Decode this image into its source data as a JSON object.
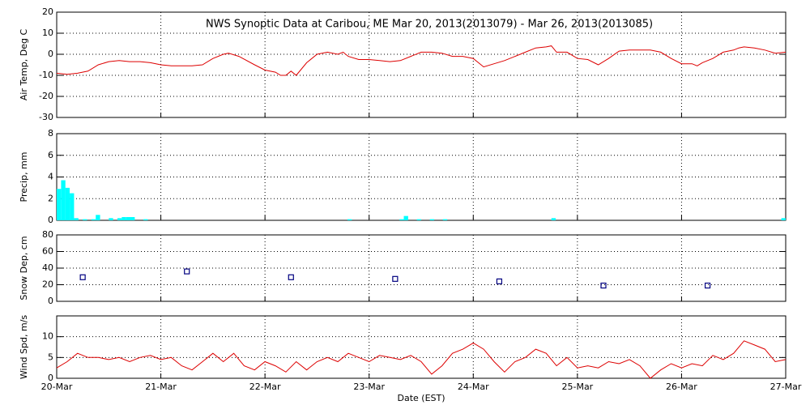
{
  "chart_data": [
    {
      "type": "line",
      "title": "NWS Synoptic Data at Caribou, ME   Mar 20, 2013(2013079) - Mar 26, 2013(2013085)",
      "y_label": "Air Temp, Deg C",
      "color": "#dd0000",
      "xlim": [
        0,
        7
      ],
      "ylim": [
        -30,
        20
      ],
      "yticks": [
        -30,
        -20,
        -10,
        0,
        10,
        20
      ],
      "grid": true,
      "x": [
        0,
        0.1,
        0.2,
        0.3,
        0.4,
        0.5,
        0.6,
        0.7,
        0.8,
        0.9,
        1.0,
        1.1,
        1.2,
        1.3,
        1.4,
        1.5,
        1.6,
        1.65,
        1.75,
        1.9,
        2.0,
        2.1,
        2.15,
        2.2,
        2.25,
        2.3,
        2.4,
        2.5,
        2.6,
        2.7,
        2.75,
        2.8,
        2.9,
        3.0,
        3.1,
        3.2,
        3.3,
        3.4,
        3.5,
        3.6,
        3.7,
        3.8,
        3.9,
        4.0,
        4.1,
        4.2,
        4.3,
        4.5,
        4.6,
        4.7,
        4.75,
        4.8,
        4.9,
        5.0,
        5.1,
        5.2,
        5.3,
        5.4,
        5.5,
        5.6,
        5.7,
        5.8,
        5.9,
        6.0,
        6.1,
        6.15,
        6.2,
        6.3,
        6.4,
        6.5,
        6.55,
        6.6,
        6.7,
        6.8,
        6.9,
        7.0
      ],
      "values": [
        -9,
        -9.5,
        -9,
        -8,
        -5,
        -3.5,
        -3,
        -3.5,
        -3.5,
        -4,
        -5,
        -5.5,
        -5.5,
        -5.5,
        -5,
        -2,
        0,
        0.5,
        -1,
        -5,
        -7.5,
        -8.5,
        -10,
        -10,
        -8,
        -10,
        -4,
        0,
        1,
        0,
        1,
        -1,
        -2.5,
        -2.5,
        -3,
        -3.5,
        -3,
        -1,
        1,
        1,
        0.5,
        -1,
        -1,
        -2,
        -6,
        -4.5,
        -3,
        1,
        3,
        3.5,
        4,
        1,
        1,
        -2,
        -2.5,
        -5,
        -2,
        1.5,
        2,
        2,
        2,
        1,
        -2,
        -4.5,
        -4.5,
        -5.5,
        -4,
        -2,
        1,
        2,
        3,
        3.5,
        3,
        2,
        0.5,
        1
      ]
    },
    {
      "type": "bar",
      "y_label": "Precip, mm",
      "color": "#00ffff",
      "xlim": [
        0,
        7
      ],
      "ylim": [
        0,
        8
      ],
      "yticks": [
        0,
        2,
        4,
        6,
        8
      ],
      "grid": true,
      "x": [
        0,
        0.042,
        0.083,
        0.125,
        0.167,
        0.25,
        0.333,
        0.375,
        0.5,
        0.583,
        0.625,
        0.667,
        0.708,
        0.833,
        2.792,
        3.292,
        3.333,
        3.458,
        3.583,
        3.708,
        4.75,
        6.958
      ],
      "values": [
        2.9,
        3.7,
        3.0,
        2.5,
        0.2,
        0.1,
        0.1,
        0.5,
        0.2,
        0.2,
        0.3,
        0.3,
        0.3,
        0.1,
        0.1,
        0.1,
        0.4,
        0.1,
        0.1,
        0.1,
        0.2,
        0.2
      ]
    },
    {
      "type": "scatter",
      "y_label": "Snow Dep, cm",
      "color": "#000080",
      "xlim": [
        0,
        7
      ],
      "ylim": [
        0,
        80
      ],
      "yticks": [
        0,
        20,
        40,
        60,
        80
      ],
      "grid": true,
      "x": [
        0.25,
        1.25,
        2.25,
        3.25,
        4.25,
        5.25,
        6.25
      ],
      "values": [
        29,
        36,
        29,
        27,
        24,
        19,
        19
      ]
    },
    {
      "type": "line",
      "y_label": "Wind Spd, m/s",
      "x_label": "Date (EST)",
      "color": "#dd0000",
      "xlim": [
        0,
        7
      ],
      "ylim": [
        0,
        15
      ],
      "yticks": [
        0,
        5,
        10
      ],
      "grid": true,
      "xticks": [
        {
          "value": 0,
          "label": "20-Mar"
        },
        {
          "value": 1,
          "label": "21-Mar"
        },
        {
          "value": 2,
          "label": "22-Mar"
        },
        {
          "value": 3,
          "label": "23-Mar"
        },
        {
          "value": 4,
          "label": "24-Mar"
        },
        {
          "value": 5,
          "label": "25-Mar"
        },
        {
          "value": 6,
          "label": "26-Mar"
        },
        {
          "value": 7,
          "label": "27-Mar"
        }
      ],
      "x": [
        0,
        0.1,
        0.2,
        0.3,
        0.4,
        0.5,
        0.6,
        0.7,
        0.8,
        0.9,
        1.0,
        1.1,
        1.2,
        1.3,
        1.4,
        1.5,
        1.6,
        1.7,
        1.8,
        1.9,
        2.0,
        2.1,
        2.2,
        2.3,
        2.4,
        2.5,
        2.6,
        2.7,
        2.8,
        2.9,
        3.0,
        3.1,
        3.2,
        3.3,
        3.4,
        3.5,
        3.6,
        3.7,
        3.8,
        3.9,
        4.0,
        4.1,
        4.2,
        4.3,
        4.4,
        4.5,
        4.6,
        4.7,
        4.8,
        4.9,
        5.0,
        5.1,
        5.2,
        5.3,
        5.4,
        5.5,
        5.6,
        5.7,
        5.8,
        5.9,
        6.0,
        6.1,
        6.2,
        6.3,
        6.4,
        6.5,
        6.6,
        6.7,
        6.8,
        6.9,
        7.0
      ],
      "values": [
        2.5,
        4,
        6,
        5,
        5,
        4.5,
        5,
        4,
        5,
        5.5,
        4.5,
        5,
        3,
        2,
        4,
        6,
        4,
        6,
        3,
        2,
        4,
        3,
        1.5,
        4,
        2,
        4,
        5,
        4,
        6,
        5,
        4,
        5.5,
        5,
        4.5,
        5.5,
        4,
        1,
        3,
        6,
        7,
        8.5,
        7,
        4,
        1.5,
        4,
        5,
        7,
        6,
        3,
        5,
        2.5,
        3,
        2.5,
        4,
        3.5,
        4.5,
        3,
        0,
        2,
        3.5,
        2.5,
        3.5,
        3,
        5.5,
        4.5,
        6,
        9,
        8,
        7,
        4,
        4.5
      ]
    }
  ]
}
